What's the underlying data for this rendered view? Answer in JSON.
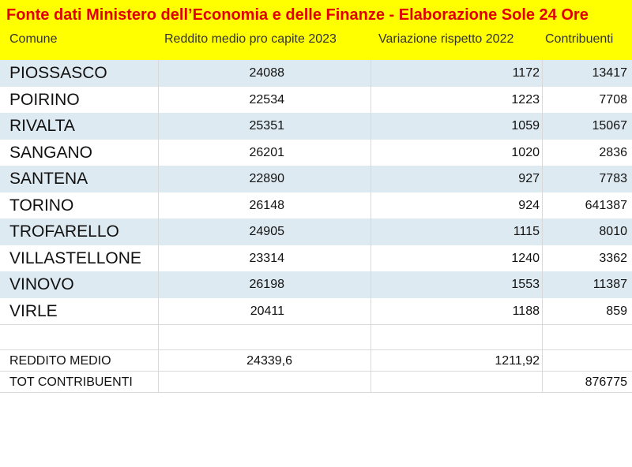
{
  "title": "Fonte dati Ministero dell’Economia e delle Finanze - Elaborazione Sole 24 Ore",
  "headers": {
    "comune": "Comune",
    "reddito": "Reddito medio pro capite 2023",
    "variazione": "Variazione rispetto 2022",
    "contribuenti": "Contribuenti"
  },
  "rows": [
    {
      "comune": "PIOSSASCO",
      "reddito": "24088",
      "variazione": "1172",
      "contribuenti": "13417"
    },
    {
      "comune": "POIRINO",
      "reddito": "22534",
      "variazione": "1223",
      "contribuenti": "7708"
    },
    {
      "comune": "RIVALTA",
      "reddito": "25351",
      "variazione": "1059",
      "contribuenti": "15067"
    },
    {
      "comune": "SANGANO",
      "reddito": "26201",
      "variazione": "1020",
      "contribuenti": "2836"
    },
    {
      "comune": "SANTENA",
      "reddito": "22890",
      "variazione": "927",
      "contribuenti": "7783"
    },
    {
      "comune": "TORINO",
      "reddito": "26148",
      "variazione": "924",
      "contribuenti": "641387"
    },
    {
      "comune": "TROFARELLO",
      "reddito": "24905",
      "variazione": "1115",
      "contribuenti": "8010"
    },
    {
      "comune": "VILLASTELLONE",
      "reddito": "23314",
      "variazione": "1240",
      "contribuenti": "3362"
    },
    {
      "comune": "VINOVO",
      "reddito": "26198",
      "variazione": "1553",
      "contribuenti": "11387"
    },
    {
      "comune": "VIRLE",
      "reddito": "20411",
      "variazione": "1188",
      "contribuenti": "859"
    }
  ],
  "summary": {
    "reddito_medio_label": "REDDITO MEDIO",
    "reddito_medio_value": "24339,6",
    "variazione_media_value": "1211,92",
    "tot_contribuenti_label": "TOT CONTRIBUENTI",
    "tot_contribuenti_value": "876775"
  },
  "colors": {
    "header_bg": "#ffff00",
    "title_text": "#e00000",
    "row_shade": "#deeaf1"
  }
}
